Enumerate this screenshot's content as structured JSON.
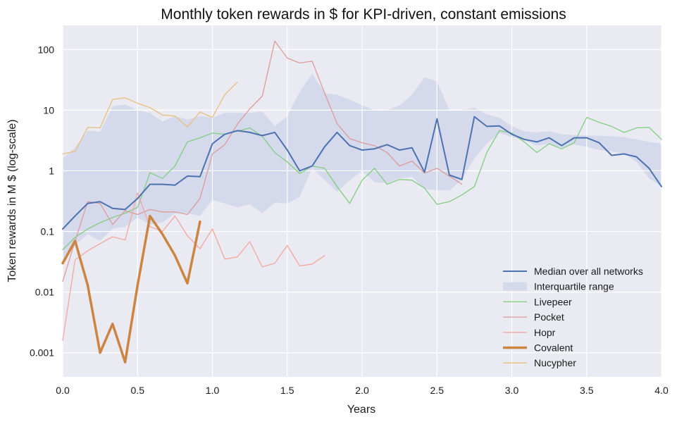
{
  "chart_data": {
    "type": "line",
    "title": "Monthly token rewards in $ for KPI-driven, constant emissions",
    "xlabel": "Years",
    "ylabel": "Token rewards in M $ (log-scale)",
    "xlim": [
      0,
      4
    ],
    "ylim": [
      0.0004,
      250
    ],
    "y_scale": "log",
    "grid": true,
    "legend_position": "lower-right",
    "background_color": "#eaeaf2",
    "x_ticks": [
      {
        "value": 0,
        "label": "0.0"
      },
      {
        "value": 0.5,
        "label": "0.5"
      },
      {
        "value": 1,
        "label": "1.0"
      },
      {
        "value": 1.5,
        "label": "1.5"
      },
      {
        "value": 2,
        "label": "2.0"
      },
      {
        "value": 2.5,
        "label": "2.5"
      },
      {
        "value": 3,
        "label": "3.0"
      },
      {
        "value": 3.5,
        "label": "3.5"
      },
      {
        "value": 4,
        "label": "4.0"
      }
    ],
    "y_ticks": [
      {
        "value": 0.001,
        "label": "0.001"
      },
      {
        "value": 0.01,
        "label": "0.01"
      },
      {
        "value": 0.1,
        "label": "0.1"
      },
      {
        "value": 1,
        "label": "1"
      },
      {
        "value": 10,
        "label": "10"
      },
      {
        "value": 100,
        "label": "100"
      }
    ],
    "band": {
      "name": "Interquartile range",
      "color": "#d5d9ec",
      "x": [
        0,
        0.083,
        0.167,
        0.25,
        0.333,
        0.417,
        0.5,
        0.583,
        0.667,
        0.75,
        0.833,
        0.917,
        1.0,
        1.083,
        1.167,
        1.25,
        1.333,
        1.417,
        1.5,
        1.583,
        1.667,
        1.75,
        1.833,
        1.917,
        2.0,
        2.083,
        2.167,
        2.25,
        2.333,
        2.417,
        2.5,
        2.583,
        2.667,
        2.75,
        2.833,
        2.917,
        3.0,
        3.083,
        3.167,
        3.25,
        3.333,
        3.417,
        3.5,
        3.583,
        3.667,
        3.75,
        3.833,
        3.917,
        4.0
      ],
      "lower": [
        0.03,
        0.06,
        0.09,
        0.07,
        0.11,
        0.12,
        0.17,
        0.13,
        0.14,
        0.2,
        0.2,
        0.18,
        0.33,
        0.29,
        0.25,
        0.28,
        0.2,
        0.3,
        0.29,
        0.37,
        1.1,
        0.7,
        0.45,
        0.7,
        1.0,
        0.65,
        0.62,
        0.75,
        0.8,
        0.5,
        0.48,
        0.47,
        0.72,
        1.6,
        2.8,
        4.2,
        3.6,
        3.2,
        2.6,
        2.8,
        2.4,
        2.7,
        2.5,
        2.2,
        2.1,
        1.9,
        1.4,
        0.75,
        0.55
      ],
      "upper": [
        1.6,
        2.4,
        4.6,
        4.4,
        11.5,
        12.5,
        10.0,
        9.0,
        6.5,
        8.0,
        7.0,
        8.0,
        7.5,
        9.0,
        9.0,
        9.0,
        9.5,
        5.5,
        8.0,
        20.0,
        40.0,
        19.0,
        18.0,
        15.0,
        12.0,
        10.0,
        10.0,
        12.0,
        18.0,
        35.0,
        30.0,
        10.0,
        10.0,
        11.0,
        8.5,
        7.5,
        5.5,
        4.5,
        4.3,
        4.5,
        4.0,
        3.9,
        3.8,
        3.8,
        3.7,
        3.6,
        3.3,
        3.0,
        2.8
      ]
    },
    "series": [
      {
        "name": "Median over all networks",
        "color": "#4c72b0",
        "width": 2,
        "x": [
          0,
          0.083,
          0.167,
          0.25,
          0.333,
          0.417,
          0.5,
          0.583,
          0.667,
          0.75,
          0.833,
          0.917,
          1.0,
          1.083,
          1.167,
          1.25,
          1.333,
          1.417,
          1.5,
          1.583,
          1.667,
          1.75,
          1.833,
          1.917,
          2.0,
          2.083,
          2.167,
          2.25,
          2.333,
          2.417,
          2.5,
          2.583,
          2.667,
          2.75,
          2.833,
          2.917,
          3.0,
          3.083,
          3.167,
          3.25,
          3.333,
          3.417,
          3.5,
          3.583,
          3.667,
          3.75,
          3.833,
          3.917,
          4.0
        ],
        "values": [
          0.11,
          0.18,
          0.29,
          0.31,
          0.24,
          0.23,
          0.35,
          0.6,
          0.6,
          0.58,
          0.82,
          0.8,
          2.8,
          4.0,
          4.6,
          4.3,
          3.8,
          4.3,
          2.2,
          1.0,
          1.2,
          2.5,
          4.3,
          2.6,
          2.2,
          2.3,
          2.7,
          2.2,
          2.4,
          0.95,
          7.2,
          0.85,
          0.72,
          7.8,
          5.4,
          5.5,
          4.0,
          3.3,
          3.0,
          3.5,
          2.6,
          3.5,
          3.5,
          2.9,
          1.8,
          1.9,
          1.7,
          1.1,
          0.55
        ]
      },
      {
        "name": "Livepeer",
        "color": "#7fcf7f",
        "width": 1.3,
        "x": [
          0,
          0.083,
          0.167,
          0.25,
          0.333,
          0.417,
          0.5,
          0.583,
          0.667,
          0.75,
          0.833,
          0.917,
          1.0,
          1.083,
          1.167,
          1.25,
          1.333,
          1.417,
          1.5,
          1.583,
          1.667,
          1.75,
          1.833,
          1.917,
          2.0,
          2.083,
          2.167,
          2.25,
          2.333,
          2.417,
          2.5,
          2.583,
          2.667,
          2.75,
          2.833,
          2.917,
          3.0,
          3.083,
          3.167,
          3.25,
          3.333,
          3.417,
          3.5,
          3.583,
          3.667,
          3.75,
          3.833,
          3.917,
          4.0
        ],
        "values": [
          0.05,
          0.08,
          0.11,
          0.14,
          0.17,
          0.2,
          0.25,
          0.93,
          0.75,
          1.2,
          3.0,
          3.5,
          4.2,
          4.0,
          4.5,
          5.1,
          3.7,
          2.0,
          1.4,
          0.9,
          1.2,
          1.1,
          0.55,
          0.29,
          0.7,
          1.1,
          0.6,
          0.72,
          0.7,
          0.52,
          0.28,
          0.31,
          0.4,
          0.55,
          2.0,
          4.6,
          4.2,
          3.0,
          2.0,
          2.8,
          2.3,
          2.9,
          7.6,
          6.3,
          5.4,
          4.3,
          5.1,
          5.2,
          3.3
        ]
      },
      {
        "name": "Pocket",
        "color": "#dd9b9b",
        "width": 1.3,
        "x": [
          0,
          0.083,
          0.167,
          0.25,
          0.333,
          0.417,
          0.5,
          0.583,
          0.667,
          0.75,
          0.833,
          0.917,
          1.0,
          1.083,
          1.167,
          1.25,
          1.333,
          1.417,
          1.5,
          1.583,
          1.667,
          1.75,
          1.833,
          1.917,
          2.0,
          2.083,
          2.167,
          2.25,
          2.333,
          2.417,
          2.5,
          2.583,
          2.667
        ],
        "values": [
          0.015,
          0.07,
          0.31,
          0.29,
          0.13,
          0.22,
          0.19,
          0.23,
          0.21,
          0.21,
          0.19,
          0.35,
          1.9,
          2.7,
          5.9,
          10.5,
          17.0,
          138.0,
          72.0,
          60.0,
          64.0,
          19.0,
          6.0,
          3.4,
          2.9,
          2.6,
          2.0,
          1.2,
          1.45,
          0.92,
          1.1,
          0.82,
          0.6
        ]
      },
      {
        "name": "Hopr",
        "color": "#f4a6a0",
        "width": 1.3,
        "x": [
          0,
          0.083,
          0.167,
          0.25,
          0.333,
          0.417,
          0.5,
          0.583,
          0.667,
          0.75,
          0.833,
          0.917,
          1.0,
          1.083,
          1.167,
          1.25,
          1.333,
          1.417,
          1.5,
          1.583,
          1.667,
          1.75
        ],
        "values": [
          0.0016,
          0.034,
          0.048,
          0.063,
          0.082,
          0.072,
          0.43,
          0.12,
          0.1,
          0.18,
          0.085,
          0.052,
          0.11,
          0.035,
          0.038,
          0.068,
          0.026,
          0.03,
          0.059,
          0.027,
          0.029,
          0.04
        ]
      },
      {
        "name": "Covalent",
        "color": "#cc8540",
        "width": 3.5,
        "x": [
          0,
          0.083,
          0.167,
          0.25,
          0.333,
          0.417,
          0.5,
          0.583,
          0.667,
          0.75,
          0.833,
          0.917
        ],
        "values": [
          0.03,
          0.07,
          0.013,
          0.001,
          0.003,
          0.0007,
          0.013,
          0.18,
          0.09,
          0.04,
          0.014,
          0.145
        ]
      },
      {
        "name": "Nucypher",
        "color": "#e8c07c",
        "width": 1.3,
        "x": [
          0,
          0.083,
          0.167,
          0.25,
          0.333,
          0.417,
          0.5,
          0.583,
          0.667,
          0.75,
          0.833,
          0.917,
          1.0,
          1.083,
          1.167
        ],
        "values": [
          1.9,
          2.1,
          5.2,
          5.1,
          15.0,
          16.0,
          13.0,
          11.0,
          8.3,
          8.0,
          5.3,
          9.3,
          7.6,
          18.0,
          29.0
        ]
      }
    ],
    "legend": [
      {
        "label": "Median over all networks",
        "kind": "line",
        "color": "#4c72b0",
        "width": 2
      },
      {
        "label": "Interquartile range",
        "kind": "patch",
        "color": "#d5d9ec"
      },
      {
        "label": "Livepeer",
        "kind": "line",
        "color": "#7fcf7f",
        "width": 1.3
      },
      {
        "label": "Pocket",
        "kind": "line",
        "color": "#dd9b9b",
        "width": 1.3
      },
      {
        "label": "Hopr",
        "kind": "line",
        "color": "#f4a6a0",
        "width": 1.3
      },
      {
        "label": "Covalent",
        "kind": "line",
        "color": "#cc8540",
        "width": 3.5
      },
      {
        "label": "Nucypher",
        "kind": "line",
        "color": "#e8c07c",
        "width": 1.3
      }
    ]
  }
}
